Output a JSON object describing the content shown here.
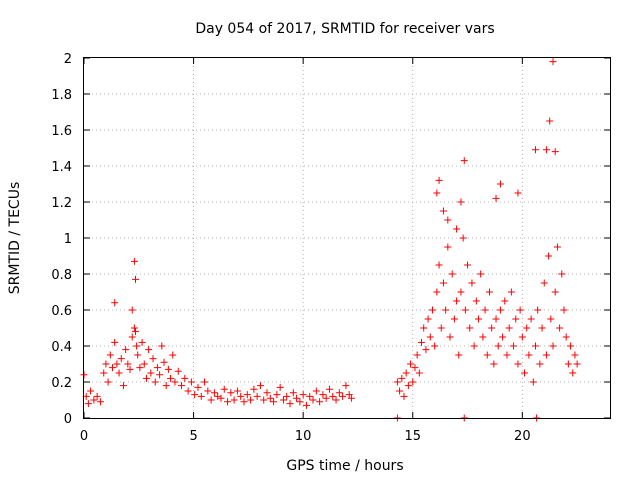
{
  "chart_data": {
    "type": "scatter",
    "title": "Day 054 of 2017, SRMTID for receiver vars",
    "xlabel": "GPS time / hours",
    "ylabel": "SRMTID / TECUs",
    "xlim": [
      0,
      24
    ],
    "ylim": [
      0,
      2
    ],
    "xticks": [
      0,
      5,
      10,
      15,
      20
    ],
    "xtick_labels": [
      "0",
      "5",
      "10",
      "15",
      "20"
    ],
    "yticks": [
      0,
      0.2,
      0.4,
      0.6,
      0.8,
      1,
      1.2,
      1.4,
      1.6,
      1.8,
      2
    ],
    "ytick_labels": [
      "0",
      "0.2",
      "0.4",
      "0.6",
      "0.8",
      "1",
      "1.2",
      "1.4",
      "1.6",
      "1.8",
      "2"
    ],
    "grid": true,
    "marker": "+",
    "color": "#ff0000",
    "series": [
      {
        "name": "SRMTID",
        "x": [
          0.0,
          0.1,
          0.2,
          0.3,
          0.45,
          0.6,
          0.75,
          0.9,
          1.0,
          1.1,
          1.2,
          1.3,
          1.4,
          1.5,
          1.6,
          1.7,
          1.8,
          1.9,
          2.0,
          2.1,
          2.2,
          2.3,
          2.35,
          2.4,
          2.45,
          2.55,
          2.65,
          2.75,
          2.85,
          2.95,
          3.05,
          3.15,
          3.25,
          3.35,
          3.45,
          3.55,
          3.65,
          3.75,
          3.85,
          3.95,
          4.05,
          4.15,
          4.3,
          4.45,
          4.6,
          4.75,
          4.9,
          5.05,
          5.2,
          5.35,
          5.5,
          5.65,
          5.8,
          5.95,
          6.1,
          6.25,
          6.4,
          6.55,
          6.7,
          6.85,
          7.0,
          7.15,
          7.3,
          7.45,
          7.6,
          7.75,
          7.9,
          8.05,
          8.2,
          8.35,
          8.5,
          8.65,
          8.8,
          8.95,
          9.1,
          9.25,
          9.4,
          9.55,
          9.7,
          9.85,
          10.0,
          10.15,
          10.3,
          10.45,
          10.6,
          10.75,
          10.9,
          11.05,
          11.2,
          11.35,
          11.5,
          11.65,
          11.8,
          11.95,
          12.1,
          12.2,
          14.3,
          14.4,
          14.5,
          14.6,
          14.7,
          14.8,
          14.9,
          15.0,
          15.1,
          15.2,
          15.3,
          15.4,
          15.5,
          15.6,
          15.7,
          15.8,
          15.9,
          16.0,
          16.1,
          16.2,
          16.3,
          16.4,
          16.5,
          16.6,
          16.7,
          16.8,
          16.9,
          17.0,
          17.1,
          17.2,
          17.3,
          17.4,
          17.5,
          17.6,
          17.7,
          17.8,
          17.9,
          18.0,
          18.1,
          18.2,
          18.3,
          18.4,
          18.5,
          18.6,
          18.7,
          18.8,
          18.9,
          19.0,
          19.1,
          19.2,
          19.3,
          19.4,
          19.5,
          19.6,
          19.7,
          19.8,
          19.9,
          20.0,
          20.1,
          20.2,
          20.3,
          20.4,
          20.5,
          20.6,
          20.7,
          20.8,
          20.9,
          21.0,
          21.1,
          21.2,
          21.3,
          21.4,
          21.5,
          21.6,
          21.7,
          21.8,
          21.9,
          22.0,
          22.1,
          22.2,
          22.3,
          22.4,
          22.5,
          2.3,
          2.35,
          1.4,
          2.2,
          16.2,
          16.1,
          17.35,
          17.2,
          21.1,
          21.25,
          21.4,
          21.5,
          20.6,
          16.6,
          16.4,
          17.0,
          19.0,
          19.8,
          18.8,
          14.3,
          17.35,
          20.65
        ],
        "y": [
          0.24,
          0.12,
          0.08,
          0.15,
          0.1,
          0.12,
          0.09,
          0.25,
          0.3,
          0.2,
          0.35,
          0.28,
          0.42,
          0.3,
          0.25,
          0.33,
          0.18,
          0.38,
          0.3,
          0.27,
          0.45,
          0.5,
          0.48,
          0.4,
          0.35,
          0.28,
          0.42,
          0.3,
          0.22,
          0.38,
          0.25,
          0.33,
          0.2,
          0.28,
          0.24,
          0.4,
          0.31,
          0.18,
          0.27,
          0.22,
          0.35,
          0.2,
          0.26,
          0.18,
          0.22,
          0.15,
          0.2,
          0.13,
          0.17,
          0.12,
          0.2,
          0.15,
          0.1,
          0.14,
          0.12,
          0.11,
          0.16,
          0.09,
          0.14,
          0.1,
          0.15,
          0.12,
          0.09,
          0.13,
          0.1,
          0.16,
          0.12,
          0.18,
          0.1,
          0.14,
          0.11,
          0.09,
          0.13,
          0.17,
          0.1,
          0.12,
          0.08,
          0.14,
          0.11,
          0.09,
          0.13,
          0.07,
          0.12,
          0.1,
          0.15,
          0.09,
          0.13,
          0.11,
          0.16,
          0.12,
          0.1,
          0.14,
          0.12,
          0.18,
          0.13,
          0.11,
          0.2,
          0.15,
          0.22,
          0.12,
          0.25,
          0.18,
          0.3,
          0.2,
          0.28,
          0.35,
          0.25,
          0.42,
          0.5,
          0.38,
          0.55,
          0.45,
          0.6,
          0.4,
          0.7,
          0.85,
          0.5,
          0.75,
          0.6,
          0.95,
          0.45,
          0.8,
          0.55,
          0.65,
          0.35,
          0.7,
          1.0,
          0.6,
          0.85,
          0.5,
          0.75,
          0.4,
          0.65,
          0.55,
          0.8,
          0.45,
          0.6,
          0.35,
          0.7,
          0.5,
          0.3,
          0.55,
          0.4,
          0.6,
          0.45,
          0.65,
          0.35,
          0.5,
          0.7,
          0.4,
          0.55,
          0.3,
          0.6,
          0.45,
          0.25,
          0.5,
          0.35,
          0.55,
          0.2,
          0.4,
          0.6,
          0.3,
          0.5,
          0.75,
          0.35,
          0.9,
          0.55,
          0.4,
          0.7,
          0.95,
          0.5,
          0.8,
          0.6,
          0.45,
          0.3,
          0.4,
          0.25,
          0.35,
          0.3,
          0.87,
          0.77,
          0.64,
          0.6,
          1.32,
          1.25,
          1.43,
          1.2,
          1.49,
          1.65,
          1.98,
          1.48,
          1.49,
          1.1,
          1.15,
          1.05,
          1.3,
          1.25,
          1.22,
          0.0,
          0.0,
          0.0
        ]
      }
    ]
  }
}
